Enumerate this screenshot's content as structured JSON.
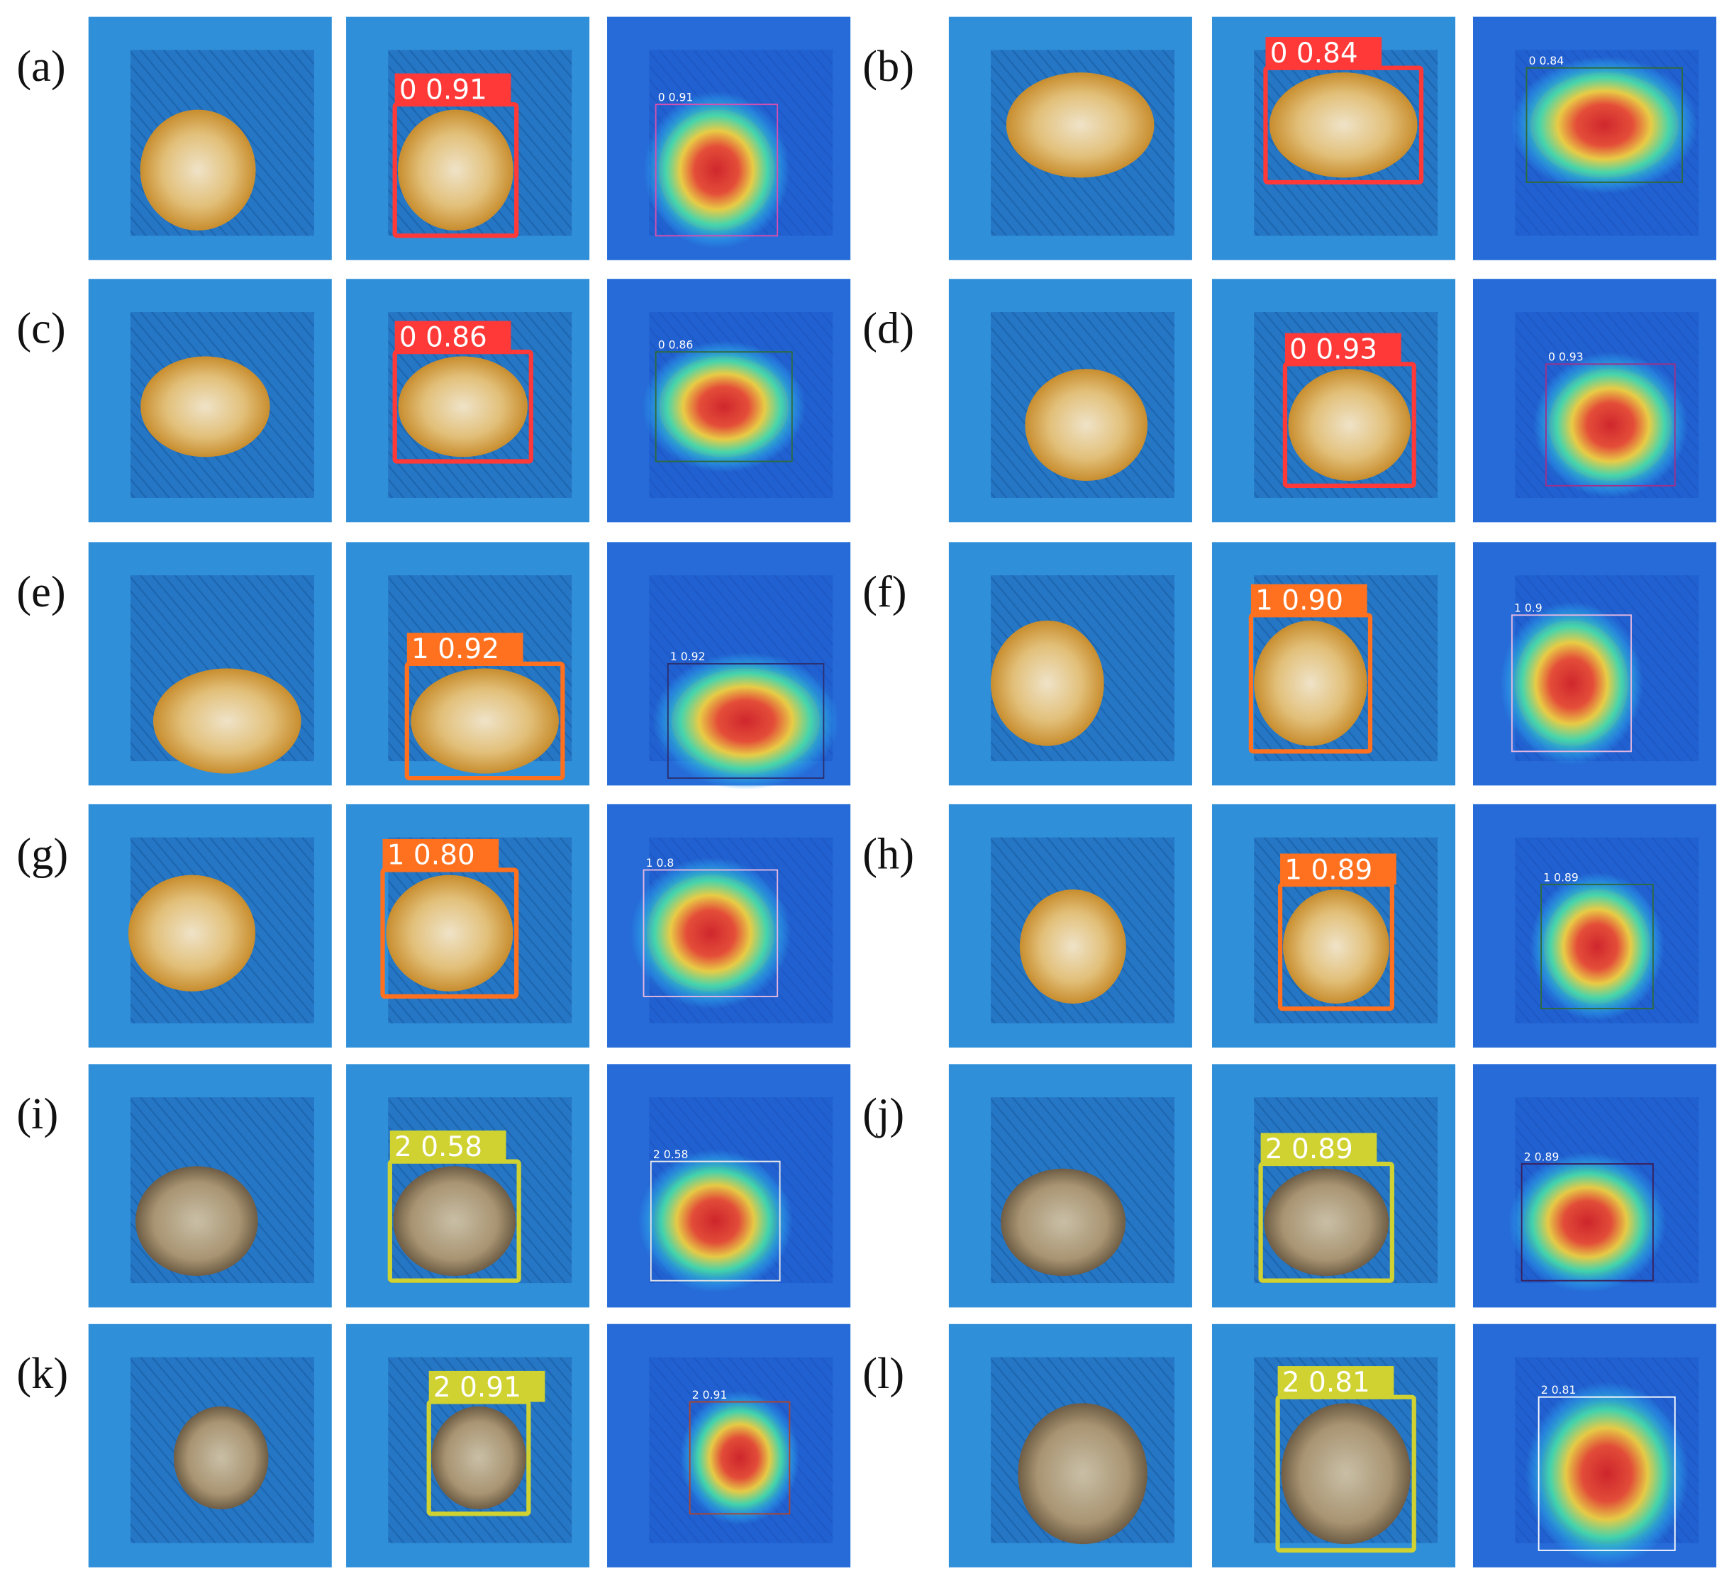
{
  "panels": [
    {
      "label": "(a)",
      "detection": "0 0.91",
      "heatmap_label": "0 0.91"
    },
    {
      "label": "(b)",
      "detection": "0 0.84",
      "heatmap_label": "0 0.84"
    },
    {
      "label": "(c)",
      "detection": "0 0.86",
      "heatmap_label": "0 0.86"
    },
    {
      "label": "(d)",
      "detection": "0 0.93",
      "heatmap_label": "0 0.93"
    },
    {
      "label": "(e)",
      "detection": "1 0.92",
      "heatmap_label": "1 0.92"
    },
    {
      "label": "(f)",
      "detection": "1 0.90",
      "heatmap_label": "1 0.9"
    },
    {
      "label": "(g)",
      "detection": "1 0.80",
      "heatmap_label": "1 0.8"
    },
    {
      "label": "(h)",
      "detection": "1 0.89",
      "heatmap_label": "1 0.89"
    },
    {
      "label": "(i)",
      "detection": "2 0.58",
      "heatmap_label": "2 0.58"
    },
    {
      "label": "(j)",
      "detection": "2 0.89",
      "heatmap_label": "2 0.89"
    },
    {
      "label": "(k)",
      "detection": "2 0.91",
      "heatmap_label": "2 0.91"
    },
    {
      "label": "(l)",
      "detection": "2 0.81",
      "heatmap_label": "2 0.81"
    }
  ]
}
